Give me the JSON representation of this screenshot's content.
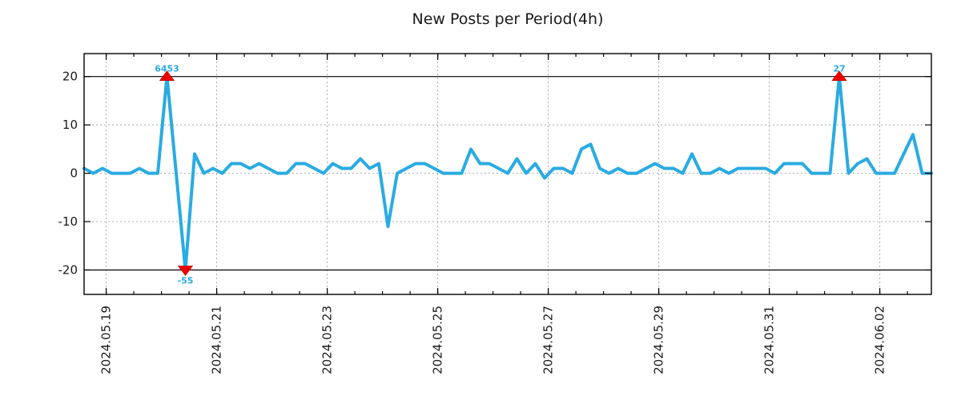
{
  "title": "New Posts per Period(4h)",
  "chart_data": {
    "type": "line",
    "title": "New Posts per Period(4h)",
    "period_label": "4h",
    "x_tick_labels": [
      "2024.05.19",
      "2024.05.21",
      "2024.05.23",
      "2024.05.25",
      "2024.05.27",
      "2024.05.29",
      "2024.05.31",
      "2024.06.02"
    ],
    "x_major_tick_first_index": 2.4,
    "x_major_tick_step_periods": 12,
    "x_minor_tick_step_periods": 3,
    "y_ticks": [
      20,
      10,
      0,
      -10,
      -20
    ],
    "y_grid_values": [
      10,
      0,
      -10
    ],
    "threshold_lines": [
      20,
      -20
    ],
    "ylim": [
      -25.05,
      24.75
    ],
    "clip_range": [
      -20,
      20
    ],
    "grid": "dotted",
    "legend_position": "none",
    "values": [
      1,
      0,
      1,
      0,
      0,
      0,
      1,
      0,
      0,
      6453,
      0,
      -55,
      4,
      0,
      1,
      0,
      2,
      2,
      1,
      2,
      1,
      0,
      0,
      2,
      2,
      1,
      0,
      2,
      1,
      1,
      3,
      1,
      2,
      -11,
      0,
      1,
      2,
      2,
      1,
      0,
      0,
      0,
      5,
      2,
      2,
      1,
      0,
      3,
      0,
      2,
      -1,
      1,
      1,
      0,
      5,
      6,
      1,
      0,
      1,
      0,
      0,
      1,
      2,
      1,
      1,
      0,
      4,
      0,
      0,
      1,
      0,
      1,
      1,
      1,
      1,
      0,
      2,
      2,
      2,
      0,
      0,
      0,
      27,
      0,
      2,
      3,
      0,
      0,
      0,
      4,
      8,
      0,
      0
    ],
    "annotations": [
      {
        "index": 9,
        "label": "6453",
        "marker": "triangle-up"
      },
      {
        "index": 11,
        "label": "-55",
        "marker": "triangle-down"
      },
      {
        "index": 82,
        "label": "27",
        "marker": "triangle-up"
      }
    ],
    "colors": {
      "line": "#29ABE2",
      "marker": "#EB0000",
      "grid": "#A8A8A8",
      "threshold": "#000000",
      "text": "#1A1A1A",
      "background": "#FFFFFF"
    }
  }
}
